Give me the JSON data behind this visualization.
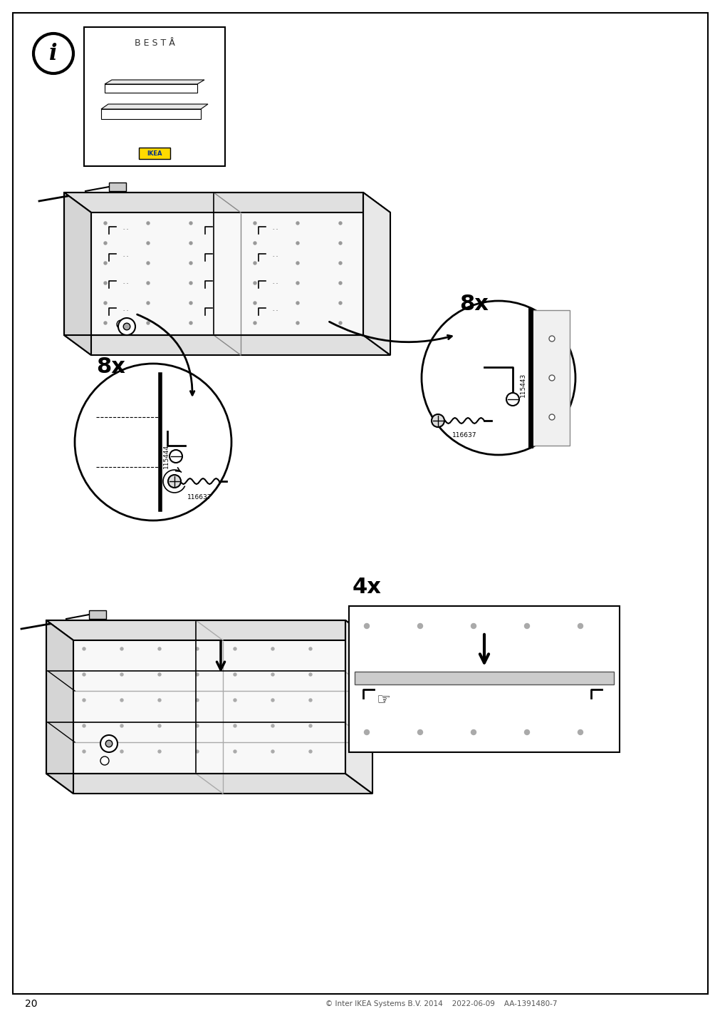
{
  "page_number": "20",
  "footer_copyright": "© Inter IKEA Systems B.V. 2014",
  "footer_date": "2022-06-09",
  "footer_code": "AA-1391480-7",
  "info_box_title": "B E S T Å",
  "part_number_1": "115444",
  "part_number_2": "115443",
  "screw_number": "116637",
  "quantity_1": "8x",
  "quantity_2": "8x",
  "quantity_3": "4x",
  "bg_color": "#ffffff",
  "line_color": "#000000",
  "border_color": "#000000",
  "gray_light": "#d0d0d0",
  "gray_medium": "#a0a0a0",
  "gray_dark": "#606060"
}
